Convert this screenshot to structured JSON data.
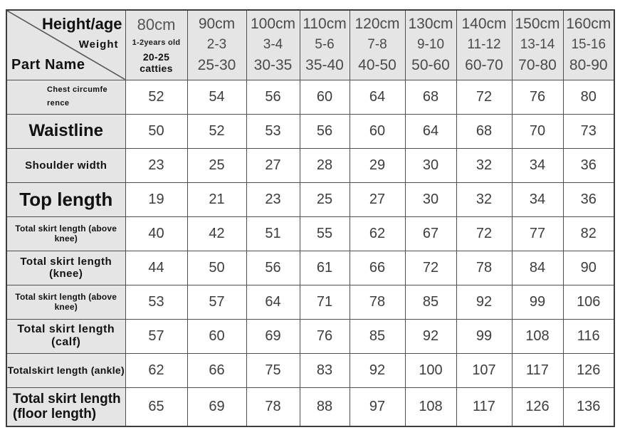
{
  "colors": {
    "cell_gray": "#e5e5e5",
    "grid_line": "#4f4f4f",
    "outer_border": "#3d3d3d",
    "number_text": "#3d3d3d",
    "label_text": "#111111"
  },
  "chart_data": {
    "type": "table",
    "title": "Children clothing size chart",
    "corner": {
      "top_label": "Height/age",
      "mid_label": "Weight",
      "bottom_label": "Part Name"
    },
    "columns": [
      {
        "height": "80cm",
        "age": "1-2years old",
        "weight": "20-25 catties"
      },
      {
        "height": "90cm",
        "age": "2-3",
        "weight": "25-30"
      },
      {
        "height": "100cm",
        "age": "3-4",
        "weight": "30-35"
      },
      {
        "height": "110cm",
        "age": "5-6",
        "weight": "35-40"
      },
      {
        "height": "120cm",
        "age": "7-8",
        "weight": "40-50"
      },
      {
        "height": "130cm",
        "age": "9-10",
        "weight": "50-60"
      },
      {
        "height": "140cm",
        "age": "11-12",
        "weight": "60-70"
      },
      {
        "height": "150cm",
        "age": "13-14",
        "weight": "70-80"
      },
      {
        "height": "160cm",
        "age": "15-16",
        "weight": "80-90"
      }
    ],
    "rows": [
      {
        "label": "Chest circumference",
        "values": [
          52,
          54,
          56,
          60,
          64,
          68,
          72,
          76,
          80
        ]
      },
      {
        "label": "Waistline",
        "values": [
          50,
          52,
          53,
          56,
          60,
          64,
          68,
          70,
          73
        ]
      },
      {
        "label": "Shoulder width",
        "values": [
          23,
          25,
          27,
          28,
          29,
          30,
          32,
          34,
          36
        ]
      },
      {
        "label": "Top length",
        "values": [
          19,
          21,
          23,
          25,
          27,
          30,
          32,
          34,
          36
        ]
      },
      {
        "label": "Total skirt length (above knee)",
        "values": [
          40,
          42,
          51,
          55,
          62,
          67,
          72,
          77,
          82
        ]
      },
      {
        "label": "Total skirt length (knee)",
        "values": [
          44,
          50,
          56,
          61,
          66,
          72,
          78,
          84,
          90
        ]
      },
      {
        "label": "Total skirt length (above knee)",
        "values": [
          53,
          57,
          64,
          71,
          78,
          85,
          92,
          99,
          106
        ]
      },
      {
        "label": "Total skirt length (calf)",
        "values": [
          57,
          60,
          69,
          76,
          85,
          92,
          99,
          108,
          116
        ]
      },
      {
        "label": "Totalskirt length (ankle)",
        "values": [
          62,
          66,
          75,
          83,
          92,
          100,
          107,
          117,
          126
        ]
      },
      {
        "label": "Total skirt length (floor length)",
        "values": [
          65,
          69,
          78,
          88,
          97,
          108,
          117,
          126,
          136
        ]
      }
    ]
  }
}
